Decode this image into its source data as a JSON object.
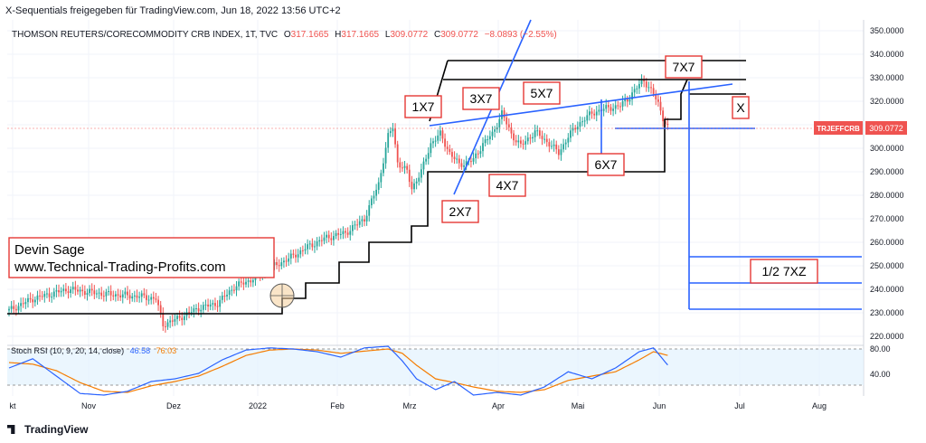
{
  "header": {
    "text": "X-Sequentials freigegeben für TradingView.com, Jun 18, 2022 13:56 UTC+2"
  },
  "ohlc": {
    "symbol": "THOMSON REUTERS/CORECOMMODITY CRB INDEX, 1T, TVC",
    "o_label": "O",
    "o": "317.1665",
    "h_label": "H",
    "h": "317.1665",
    "l_label": "L",
    "l": "309.0772",
    "c_label": "C",
    "c": "309.0772",
    "change": "−8.0893 (−2.55%)"
  },
  "price_tag": {
    "symbol": "TRJEFFCRB",
    "value": "309.0772"
  },
  "stoch": {
    "label": "Stoch RSI (10, 9, 20, 14, close)",
    "k": "46.58",
    "d": "76.03"
  },
  "watermark": {
    "line1": "Devin Sage",
    "line2": "www.Technical-Trading-Profits.com"
  },
  "labels": {
    "l1x7": "1X7",
    "l2x7": "2X7",
    "l3x7": "3X7",
    "l4x7": "4X7",
    "l5x7": "5X7",
    "l6x7": "6X7",
    "l7x7": "7X7",
    "lx": "X",
    "lhalf": "1/2 7XZ"
  },
  "footer": {
    "brand": "TradingView"
  },
  "colors": {
    "up": "#26a69a",
    "down": "#ef5350",
    "blue": "#2962ff",
    "k_line": "#2962ff",
    "d_line": "#f57c00",
    "label_border": "#e53935"
  },
  "chart_data": {
    "type": "candlestick",
    "y_axis": {
      "min": 220,
      "max": 350,
      "ticks": [
        "350.0000",
        "340.0000",
        "330.0000",
        "320.0000",
        "310.0000",
        "300.0000",
        "290.0000",
        "280.0000",
        "270.0000",
        "260.0000",
        "250.0000",
        "240.0000",
        "230.0000",
        "220.0000"
      ]
    },
    "x_ticks": [
      "kt",
      "Nov",
      "Dez",
      "2022",
      "Feb",
      "Mrz",
      "Apr",
      "Mai",
      "Jun",
      "Jul",
      "Aug"
    ],
    "stoch_ticks": [
      "80.00",
      "40.00"
    ],
    "close_anchors": [
      [
        0,
        231
      ],
      [
        10,
        236
      ],
      [
        25,
        240
      ],
      [
        40,
        238
      ],
      [
        55,
        237
      ],
      [
        62,
        236
      ],
      [
        65,
        225
      ],
      [
        70,
        227
      ],
      [
        80,
        232
      ],
      [
        88,
        234
      ],
      [
        95,
        241
      ],
      [
        102,
        244
      ],
      [
        110,
        249
      ],
      [
        118,
        253
      ],
      [
        126,
        258
      ],
      [
        134,
        262
      ],
      [
        142,
        264
      ],
      [
        150,
        270
      ],
      [
        156,
        285
      ],
      [
        160,
        305
      ],
      [
        162,
        309
      ],
      [
        164,
        294
      ],
      [
        168,
        290
      ],
      [
        170,
        283
      ],
      [
        174,
        290
      ],
      [
        178,
        302
      ],
      [
        182,
        306
      ],
      [
        186,
        298
      ],
      [
        190,
        293
      ],
      [
        196,
        295
      ],
      [
        200,
        302
      ],
      [
        204,
        306
      ],
      [
        208,
        315
      ],
      [
        212,
        306
      ],
      [
        216,
        301
      ],
      [
        222,
        307
      ],
      [
        228,
        302
      ],
      [
        232,
        298
      ],
      [
        236,
        305
      ],
      [
        240,
        310
      ],
      [
        246,
        315
      ],
      [
        252,
        317
      ],
      [
        258,
        318
      ],
      [
        262,
        322
      ],
      [
        266,
        327
      ],
      [
        268,
        329
      ],
      [
        270,
        326
      ],
      [
        272,
        323
      ],
      [
        274,
        319
      ],
      [
        276,
        313
      ],
      [
        278,
        309
      ]
    ],
    "stoch_k_anchors": [
      [
        0,
        55
      ],
      [
        10,
        72
      ],
      [
        20,
        40
      ],
      [
        30,
        8
      ],
      [
        40,
        5
      ],
      [
        50,
        12
      ],
      [
        60,
        30
      ],
      [
        70,
        35
      ],
      [
        80,
        45
      ],
      [
        90,
        70
      ],
      [
        100,
        88
      ],
      [
        110,
        92
      ],
      [
        120,
        90
      ],
      [
        130,
        85
      ],
      [
        140,
        75
      ],
      [
        150,
        92
      ],
      [
        160,
        95
      ],
      [
        166,
        68
      ],
      [
        172,
        35
      ],
      [
        180,
        15
      ],
      [
        188,
        30
      ],
      [
        196,
        5
      ],
      [
        206,
        10
      ],
      [
        216,
        5
      ],
      [
        226,
        20
      ],
      [
        236,
        48
      ],
      [
        246,
        35
      ],
      [
        256,
        55
      ],
      [
        266,
        85
      ],
      [
        272,
        92
      ],
      [
        280,
        50
      ]
    ],
    "stoch_d_anchors": [
      [
        0,
        65
      ],
      [
        10,
        62
      ],
      [
        20,
        50
      ],
      [
        30,
        28
      ],
      [
        40,
        12
      ],
      [
        50,
        10
      ],
      [
        60,
        22
      ],
      [
        70,
        30
      ],
      [
        80,
        40
      ],
      [
        90,
        58
      ],
      [
        100,
        78
      ],
      [
        110,
        88
      ],
      [
        120,
        90
      ],
      [
        130,
        88
      ],
      [
        140,
        82
      ],
      [
        150,
        86
      ],
      [
        160,
        90
      ],
      [
        166,
        82
      ],
      [
        172,
        60
      ],
      [
        180,
        35
      ],
      [
        188,
        28
      ],
      [
        196,
        20
      ],
      [
        206,
        12
      ],
      [
        216,
        10
      ],
      [
        226,
        15
      ],
      [
        236,
        32
      ],
      [
        246,
        40
      ],
      [
        256,
        48
      ],
      [
        266,
        70
      ],
      [
        272,
        85
      ],
      [
        280,
        76
      ]
    ]
  }
}
